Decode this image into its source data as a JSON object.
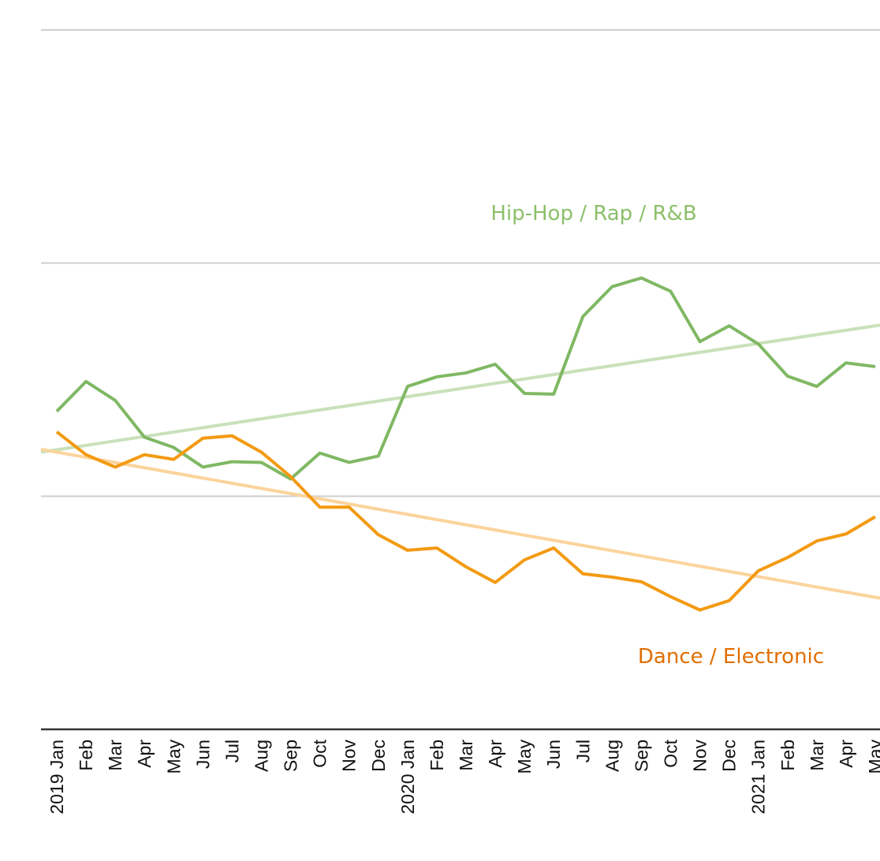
{
  "chart_data": {
    "type": "line",
    "categories": [
      "2019 Jan",
      "Feb",
      "Mar",
      "Apr",
      "May",
      "Jun",
      "Jul",
      "Aug",
      "Sep",
      "Oct",
      "Nov",
      "Dec",
      "2020 Jan",
      "Feb",
      "Mar",
      "Apr",
      "May",
      "Jun",
      "Jul",
      "Aug",
      "Sep",
      "Oct",
      "Nov",
      "Dec",
      "2021 Jan",
      "Feb",
      "Mar",
      "Apr",
      "May"
    ],
    "series": [
      {
        "name": "Hip-Hop / Rap / R&B",
        "color": "#80b864",
        "trend_color": "#c9e1ba",
        "label_color": "#8cbf6a",
        "values": [
          1.364,
          1.492,
          1.411,
          1.253,
          1.209,
          1.125,
          1.148,
          1.145,
          1.074,
          1.185,
          1.145,
          1.172,
          1.471,
          1.512,
          1.529,
          1.566,
          1.441,
          1.438,
          1.771,
          1.899,
          1.936,
          1.879,
          1.663,
          1.731,
          1.653,
          1.515,
          1.471,
          1.572,
          1.556
        ],
        "trend": [
          1.199,
          1.731
        ]
      },
      {
        "name": "Dance / Electronic",
        "color": "#f39a12",
        "trend_color": "#fbd49c",
        "label_color": "#e06e00",
        "values": [
          1.276,
          1.178,
          1.125,
          1.178,
          1.158,
          1.249,
          1.259,
          1.189,
          1.084,
          0.953,
          0.953,
          0.835,
          0.768,
          0.778,
          0.697,
          0.63,
          0.727,
          0.778,
          0.667,
          0.653,
          0.633,
          0.569,
          0.512,
          0.552,
          0.68,
          0.737,
          0.808,
          0.838,
          0.912
        ],
        "trend": [
          1.189,
          0.566
        ]
      }
    ],
    "ylim": [
      0,
      3
    ],
    "yticks": [
      0,
      1,
      2,
      3
    ],
    "grid": true
  }
}
